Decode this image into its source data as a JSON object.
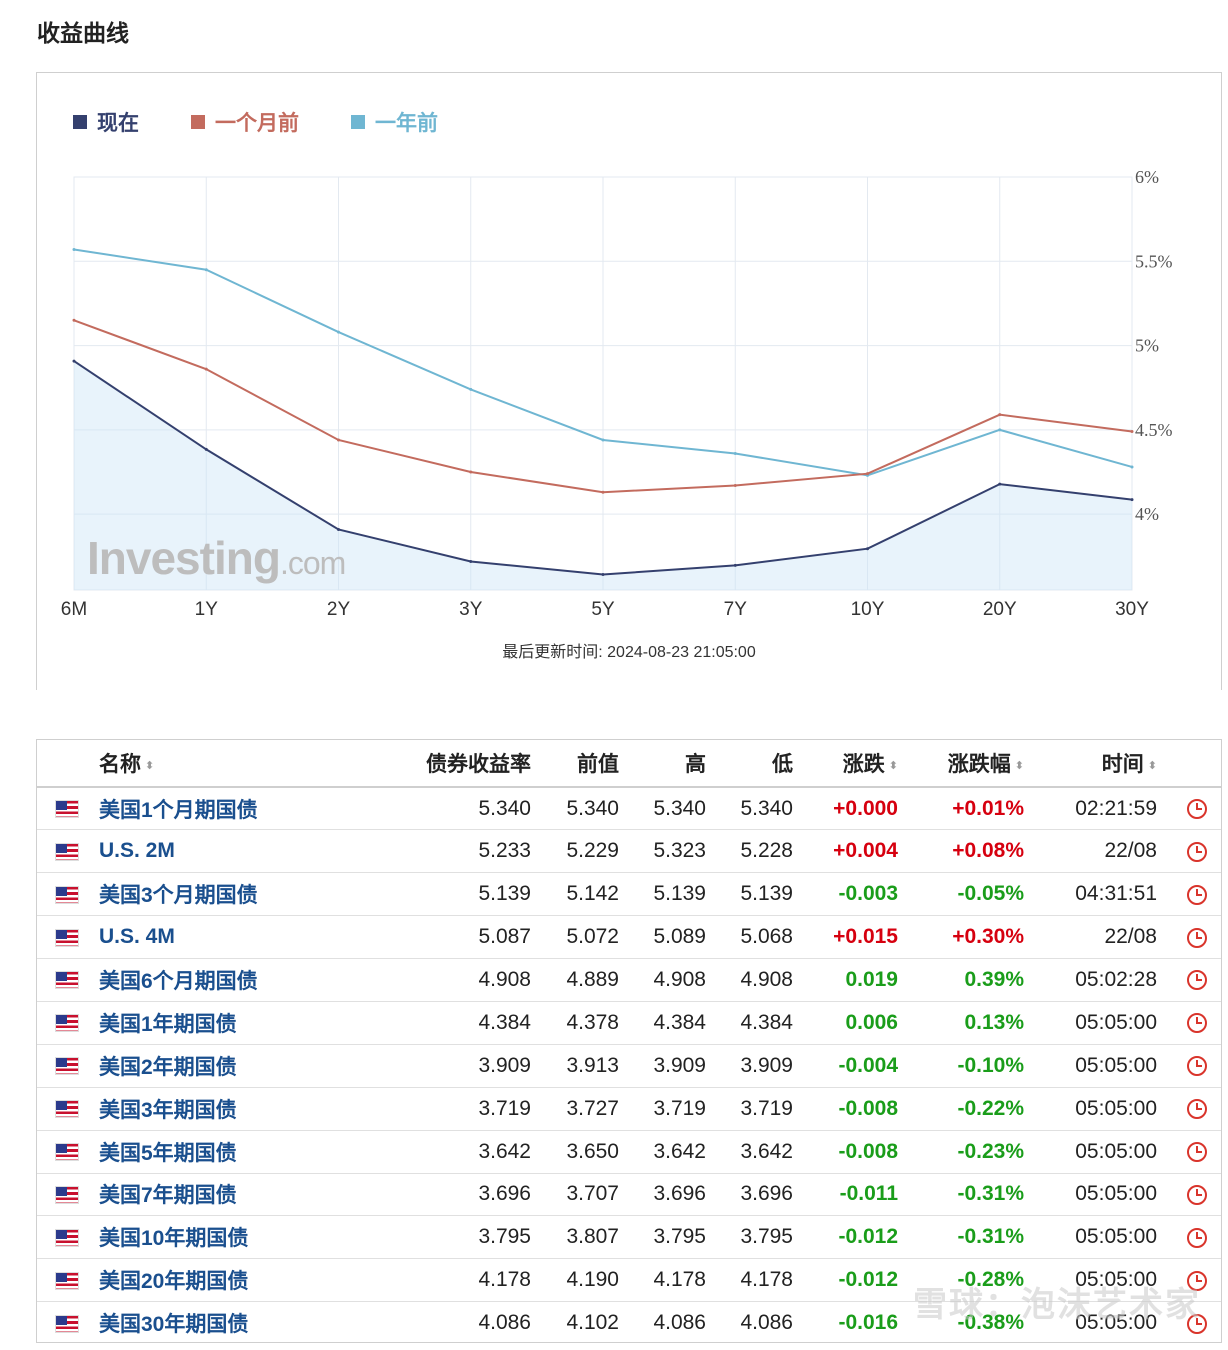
{
  "page": {
    "title": "收益曲线"
  },
  "chart_data": {
    "type": "line",
    "categories": [
      "6M",
      "1Y",
      "2Y",
      "3Y",
      "5Y",
      "7Y",
      "10Y",
      "20Y",
      "30Y"
    ],
    "series": [
      {
        "name": "现在",
        "color": "#34406e",
        "values": [
          4.908,
          4.384,
          3.909,
          3.719,
          3.642,
          3.696,
          3.795,
          4.178,
          4.086
        ]
      },
      {
        "name": "一个月前",
        "color": "#c36b5e",
        "values": [
          5.15,
          4.86,
          4.44,
          4.25,
          4.13,
          4.17,
          4.24,
          4.59,
          4.49
        ]
      },
      {
        "name": "一年前",
        "color": "#6fb6d2",
        "values": [
          5.57,
          5.45,
          5.08,
          4.74,
          4.44,
          4.36,
          4.23,
          4.5,
          4.28
        ]
      }
    ],
    "y_ticks": [
      "6%",
      "5.5%",
      "5%",
      "4.5%",
      "4%"
    ],
    "y_tick_values": [
      6,
      5.5,
      5,
      4.5,
      4
    ],
    "ylim": [
      3.55,
      6.0
    ],
    "grid": true,
    "legend_position": "top-left",
    "area_fill_series": "现在",
    "watermark": "Investing.com",
    "update_label": "最后更新时间: 2024-08-23 21:05:00"
  },
  "watermark": {
    "brand": "Investing",
    "suffix": ".com"
  },
  "table": {
    "headers": {
      "name": "名称",
      "yield": "债券收益率",
      "prev": "前值",
      "high": "高",
      "low": "低",
      "change": "涨跌",
      "change_pct": "涨跌幅",
      "time": "时间"
    },
    "sort_icon": "⬍",
    "rows": [
      {
        "name": "美国1个月期国债",
        "yield": "5.340",
        "prev": "5.340",
        "high": "5.340",
        "low": "5.340",
        "change": "+0.000",
        "change_pct": "+0.01%",
        "time": "02:21:59",
        "dir": "up"
      },
      {
        "name": "U.S. 2M",
        "yield": "5.233",
        "prev": "5.229",
        "high": "5.323",
        "low": "5.228",
        "change": "+0.004",
        "change_pct": "+0.08%",
        "time": "22/08",
        "dir": "up"
      },
      {
        "name": "美国3个月期国债",
        "yield": "5.139",
        "prev": "5.142",
        "high": "5.139",
        "low": "5.139",
        "change": "-0.003",
        "change_pct": "-0.05%",
        "time": "04:31:51",
        "dir": "down"
      },
      {
        "name": "U.S. 4M",
        "yield": "5.087",
        "prev": "5.072",
        "high": "5.089",
        "low": "5.068",
        "change": "+0.015",
        "change_pct": "+0.30%",
        "time": "22/08",
        "dir": "up"
      },
      {
        "name": "美国6个月期国债",
        "yield": "4.908",
        "prev": "4.889",
        "high": "4.908",
        "low": "4.908",
        "change": "0.019",
        "change_pct": "0.39%",
        "time": "05:02:28",
        "dir": "down"
      },
      {
        "name": "美国1年期国债",
        "yield": "4.384",
        "prev": "4.378",
        "high": "4.384",
        "low": "4.384",
        "change": "0.006",
        "change_pct": "0.13%",
        "time": "05:05:00",
        "dir": "down"
      },
      {
        "name": "美国2年期国债",
        "yield": "3.909",
        "prev": "3.913",
        "high": "3.909",
        "low": "3.909",
        "change": "-0.004",
        "change_pct": "-0.10%",
        "time": "05:05:00",
        "dir": "down"
      },
      {
        "name": "美国3年期国债",
        "yield": "3.719",
        "prev": "3.727",
        "high": "3.719",
        "low": "3.719",
        "change": "-0.008",
        "change_pct": "-0.22%",
        "time": "05:05:00",
        "dir": "down"
      },
      {
        "name": "美国5年期国债",
        "yield": "3.642",
        "prev": "3.650",
        "high": "3.642",
        "low": "3.642",
        "change": "-0.008",
        "change_pct": "-0.23%",
        "time": "05:05:00",
        "dir": "down"
      },
      {
        "name": "美国7年期国债",
        "yield": "3.696",
        "prev": "3.707",
        "high": "3.696",
        "low": "3.696",
        "change": "-0.011",
        "change_pct": "-0.31%",
        "time": "05:05:00",
        "dir": "down"
      },
      {
        "name": "美国10年期国债",
        "yield": "3.795",
        "prev": "3.807",
        "high": "3.795",
        "low": "3.795",
        "change": "-0.012",
        "change_pct": "-0.31%",
        "time": "05:05:00",
        "dir": "down"
      },
      {
        "name": "美国20年期国债",
        "yield": "4.178",
        "prev": "4.190",
        "high": "4.178",
        "low": "4.178",
        "change": "-0.012",
        "change_pct": "-0.28%",
        "time": "05:05:00",
        "dir": "down"
      },
      {
        "name": "美国30年期国债",
        "yield": "4.086",
        "prev": "4.102",
        "high": "4.086",
        "low": "4.086",
        "change": "-0.016",
        "change_pct": "-0.38%",
        "time": "05:05:00",
        "dir": "down"
      }
    ]
  },
  "icons": {
    "flag": "us-flag-icon",
    "clock": "clock-icon",
    "sort": "sort-icon"
  },
  "colors": {
    "up": "#d6000f",
    "down": "#1a9d1a",
    "link": "#1a4f8e"
  },
  "overlay_watermark": "雪球：泡沫艺术家"
}
